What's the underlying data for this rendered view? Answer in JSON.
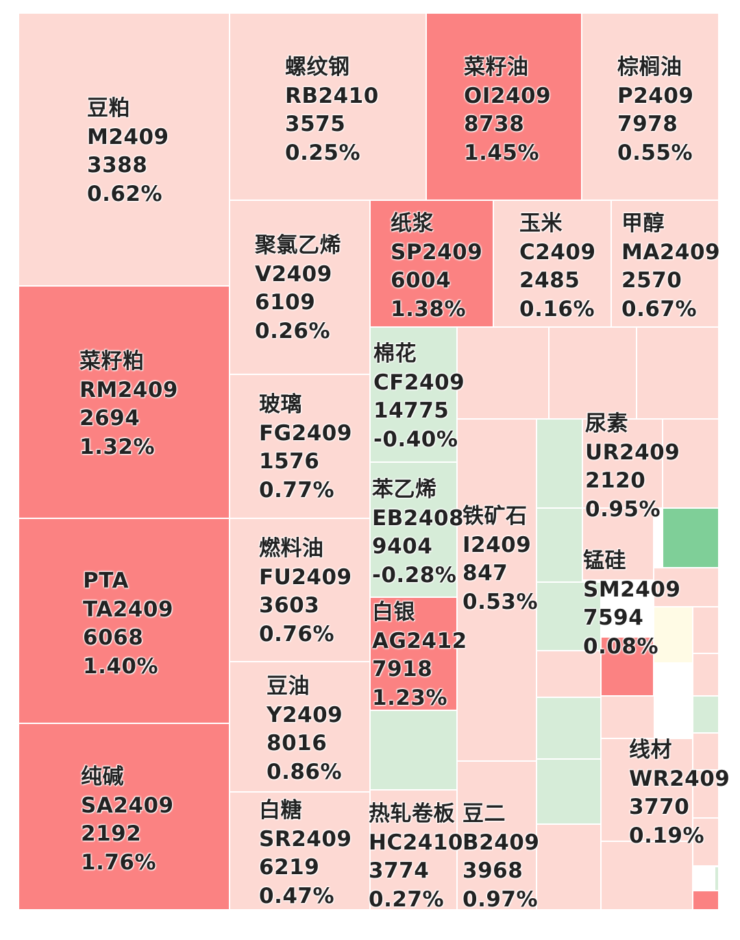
{
  "chart_data": {
    "type": "treemap",
    "color_scale": {
      "strong_up": "#fb8282",
      "mild_up": "#fdd9d3",
      "flat": "#fffbe5",
      "mild_down": "#d6ecd8",
      "strong_down": "#7fcf98"
    },
    "cells": [
      {
        "name": "豆粕",
        "code": "M2409",
        "price": "3388",
        "change": "0.62%",
        "color": "#fdd9d3"
      },
      {
        "name": "螺纹钢",
        "code": "RB2410",
        "price": "3575",
        "change": "0.25%",
        "color": "#fdd9d3"
      },
      {
        "name": "菜籽油",
        "code": "OI2409",
        "price": "8738",
        "change": "1.45%",
        "color": "#fb8282"
      },
      {
        "name": "棕榈油",
        "code": "P2409",
        "price": "7978",
        "change": "0.55%",
        "color": "#fdd9d3"
      },
      {
        "name": "聚氯乙烯",
        "code": "V2409",
        "price": "6109",
        "change": "0.26%",
        "color": "#fdd9d3"
      },
      {
        "name": "纸浆",
        "code": "SP2409",
        "price": "6004",
        "change": "1.38%",
        "color": "#fb8282"
      },
      {
        "name": "玉米",
        "code": "C2409",
        "price": "2485",
        "change": "0.16%",
        "color": "#fdd9d3"
      },
      {
        "name": "甲醇",
        "code": "MA2409",
        "price": "2570",
        "change": "0.67%",
        "color": "#fdd9d3"
      },
      {
        "name": "菜籽粕",
        "code": "RM2409",
        "price": "2694",
        "change": "1.32%",
        "color": "#fb8282"
      },
      {
        "name": "玻璃",
        "code": "FG2409",
        "price": "1576",
        "change": "0.77%",
        "color": "#fdd9d3"
      },
      {
        "name": "棉花",
        "code": "CF2409",
        "price": "14775",
        "change": "-0.40%",
        "color": "#d6ecd8"
      },
      {
        "name": "苯乙烯",
        "code": "EB2408",
        "price": "9404",
        "change": "-0.28%",
        "color": "#d6ecd8"
      },
      {
        "name": "尿素",
        "code": "UR2409",
        "price": "2120",
        "change": "0.95%",
        "color": "#fdd9d3"
      },
      {
        "name": "铁矿石",
        "code": "I2409",
        "price": "847",
        "change": "0.53%",
        "color": "#fdd9d3"
      },
      {
        "name": "锰硅",
        "code": "SM2409",
        "price": "7594",
        "change": "0.08%",
        "color": "#fdd9d3"
      },
      {
        "name": "PTA",
        "code": "TA2409",
        "price": "6068",
        "change": "1.40%",
        "color": "#fb8282"
      },
      {
        "name": "燃料油",
        "code": "FU2409",
        "price": "3603",
        "change": "0.76%",
        "color": "#fdd9d3"
      },
      {
        "name": "白银",
        "code": "AG2412",
        "price": "7918",
        "change": "1.23%",
        "color": "#fb8282"
      },
      {
        "name": "豆油",
        "code": "Y2409",
        "price": "8016",
        "change": "0.86%",
        "color": "#fdd9d3"
      },
      {
        "name": "纯碱",
        "code": "SA2409",
        "price": "2192",
        "change": "1.76%",
        "color": "#fb8282"
      },
      {
        "name": "线材",
        "code": "WR2409",
        "price": "3770",
        "change": "0.19%",
        "color": "#fdd9d3"
      },
      {
        "name": "白糖",
        "code": "SR2409",
        "price": "6219",
        "change": "0.47%",
        "color": "#fdd9d3"
      },
      {
        "name": "热轧卷板",
        "code": "HC2410",
        "price": "3774",
        "change": "0.27%",
        "color": "#fdd9d3"
      },
      {
        "name": "豆二",
        "code": "B2409",
        "price": "3968",
        "change": "0.97%",
        "color": "#fdd9d3"
      }
    ],
    "unlabeled_cells": [
      {
        "color": "#d6ecd8"
      },
      {
        "color": "#fdd9d3"
      },
      {
        "color": "#fdd9d3"
      },
      {
        "color": "#fdd9d3"
      },
      {
        "color": "#d6ecd8"
      },
      {
        "color": "#fdd9d3"
      },
      {
        "color": "#7fcf98"
      },
      {
        "color": "#d6ecd8"
      },
      {
        "color": "#fdd9d3"
      },
      {
        "color": "#fffbe5"
      },
      {
        "color": "#fb8282"
      },
      {
        "color": "#d6ecd8"
      },
      {
        "color": "#fdd9d3"
      },
      {
        "color": "#fdd9d3"
      },
      {
        "color": "#d6ecd8"
      },
      {
        "color": "#d6ecd8"
      },
      {
        "color": "#d6ecd8"
      },
      {
        "color": "#fdd9d3"
      },
      {
        "color": "#fdd9d3"
      },
      {
        "color": "#fdd9d3"
      },
      {
        "color": "#fdd9d3"
      },
      {
        "color": "#d6ecd8"
      },
      {
        "color": "#fdd9d3"
      },
      {
        "color": "#fb8282"
      },
      {
        "color": "#fdd9d3"
      },
      {
        "color": "#d6ecd8"
      },
      {
        "color": "#fdd9d3"
      }
    ]
  }
}
